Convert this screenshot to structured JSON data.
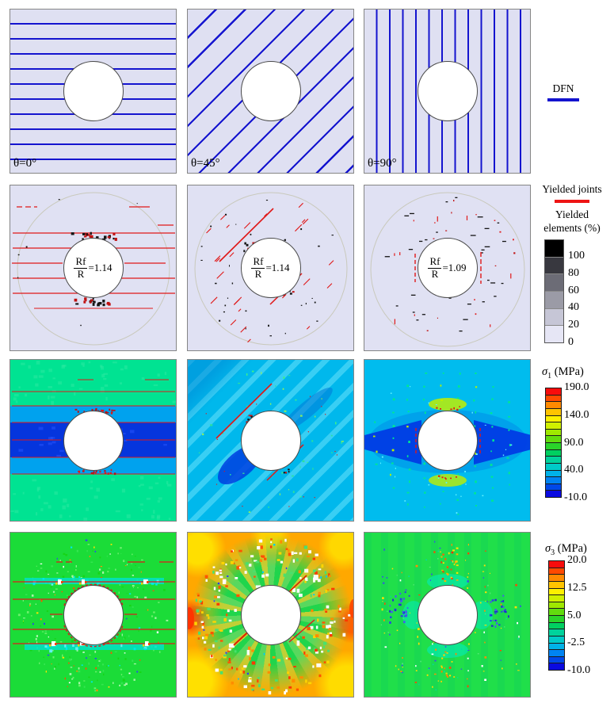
{
  "figure": {
    "panel_labels": [
      "θ=0°",
      "θ=45°",
      "θ=90°"
    ]
  },
  "panels": {
    "row2": [
      {
        "num": "Rf",
        "den": "R",
        "value": "=1.14"
      },
      {
        "num": "Rf",
        "den": "R",
        "value": "=1.14"
      },
      {
        "num": "Rf",
        "den": "R",
        "value": "=1.09"
      }
    ]
  },
  "legends": {
    "dfn": {
      "label": "DFN",
      "color": "#1414cf"
    },
    "yielded_joints": {
      "label": "Yielded joints",
      "color": "#ee1414"
    },
    "yielded_elements": {
      "title_line1": "Yielded",
      "title_line2": "elements (%)",
      "ticks": [
        "100",
        "80",
        "60",
        "40",
        "20",
        "0"
      ],
      "colors": [
        "#000000",
        "#38383f",
        "#6c6c76",
        "#9b9ba6",
        "#c6c6d6",
        "#e6e6f5"
      ]
    },
    "sigma1": {
      "symbol": "σ",
      "subscript": "1",
      "unit": "(MPa)",
      "ticks": [
        "190.0",
        "140.0",
        "90.0",
        "40.0",
        "-10.0"
      ],
      "colors": [
        "#f80c0c",
        "#ff4a00",
        "#ff8a00",
        "#ffc400",
        "#fdf000",
        "#d0f000",
        "#9fe800",
        "#62dc0e",
        "#2ad42a",
        "#00d060",
        "#00d29c",
        "#00cac8",
        "#00b2e8",
        "#0084f2",
        "#0048e8",
        "#0a0ae0"
      ]
    },
    "sigma3": {
      "symbol": "σ",
      "subscript": "3",
      "unit": "(MPa)",
      "ticks": [
        "20.0",
        "12.5",
        "5.0",
        "-2.5",
        "-10.0"
      ],
      "colors": [
        "#f80c0c",
        "#ff4a00",
        "#ff8a00",
        "#ffc400",
        "#fdf000",
        "#d0f000",
        "#9fe800",
        "#62dc0e",
        "#2ad42a",
        "#00d060",
        "#00d29c",
        "#00cac8",
        "#00b2e8",
        "#0084f2",
        "#0048e8",
        "#0a0ae0"
      ]
    }
  },
  "chart_data": {
    "type": "heatmap",
    "grid": {
      "rows": 4,
      "cols": 3
    },
    "columns": [
      "θ=0°",
      "θ=45°",
      "θ=90°"
    ],
    "row_contents": [
      {
        "row": 1,
        "content": "DFN joint network maps",
        "joint_orientations_deg": [
          0,
          45,
          90
        ]
      },
      {
        "row": 2,
        "content": "Yielded joints and yielded elements (%) around circular opening",
        "Rf_over_R": [
          1.14,
          1.14,
          1.09
        ],
        "colorbar_ticks_percent": [
          100,
          80,
          60,
          40,
          20,
          0
        ]
      },
      {
        "row": 3,
        "content": "σ1 (MPa) principal stress contours",
        "colorbar_ticks_MPa": [
          190.0,
          140.0,
          90.0,
          40.0,
          -10.0
        ],
        "range_MPa": [
          -10.0,
          190.0
        ]
      },
      {
        "row": 4,
        "content": "σ3 (MPa) principal stress contours",
        "colorbar_ticks_MPa": [
          20.0,
          12.5,
          5.0,
          -2.5,
          -10.0
        ],
        "range_MPa": [
          -10.0,
          20.0
        ]
      }
    ],
    "legend_position": "right"
  }
}
